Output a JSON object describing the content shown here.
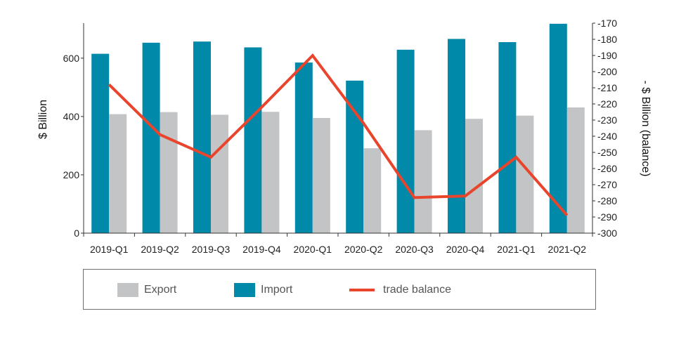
{
  "chart_data": {
    "type": "bar",
    "categories": [
      "2019-Q1",
      "2019-Q2",
      "2019-Q3",
      "2019-Q4",
      "2020-Q1",
      "2020-Q2",
      "2020-Q3",
      "2020-Q4",
      "2021-Q1",
      "2021-Q2"
    ],
    "series": [
      {
        "name": "Import",
        "type": "bar",
        "axis": "left",
        "color": "#0089a8",
        "values": [
          615,
          653,
          657,
          637,
          585,
          523,
          629,
          666,
          655,
          718
        ]
      },
      {
        "name": "Export",
        "type": "bar",
        "axis": "left",
        "color": "#c3c4c6",
        "values": [
          408,
          415,
          406,
          416,
          395,
          291,
          353,
          392,
          403,
          431
        ]
      },
      {
        "name": "trade balance",
        "type": "line",
        "axis": "right",
        "color": "#e8452c",
        "values": [
          -208,
          -239,
          -253,
          -222,
          -190,
          -232,
          -278,
          -277,
          -253,
          -289
        ]
      }
    ],
    "ylabel": "$ Billion",
    "y2label": "- $ Billion (balance)",
    "ylim": [
      0,
      720
    ],
    "yticks": [
      0,
      200,
      400,
      600
    ],
    "y2lim": [
      -300,
      -170
    ],
    "y2ticks": [
      -300,
      -290,
      -280,
      -270,
      -260,
      -250,
      -240,
      -230,
      -220,
      -210,
      -200,
      -190,
      -180,
      -170
    ],
    "legend": {
      "position": "bottom",
      "items": [
        {
          "label": "Export",
          "kind": "swatch",
          "color": "#c3c4c6"
        },
        {
          "label": "Import",
          "kind": "swatch",
          "color": "#0089a8"
        },
        {
          "label": "trade balance",
          "kind": "line",
          "color": "#e8452c"
        }
      ]
    },
    "grid": false
  }
}
